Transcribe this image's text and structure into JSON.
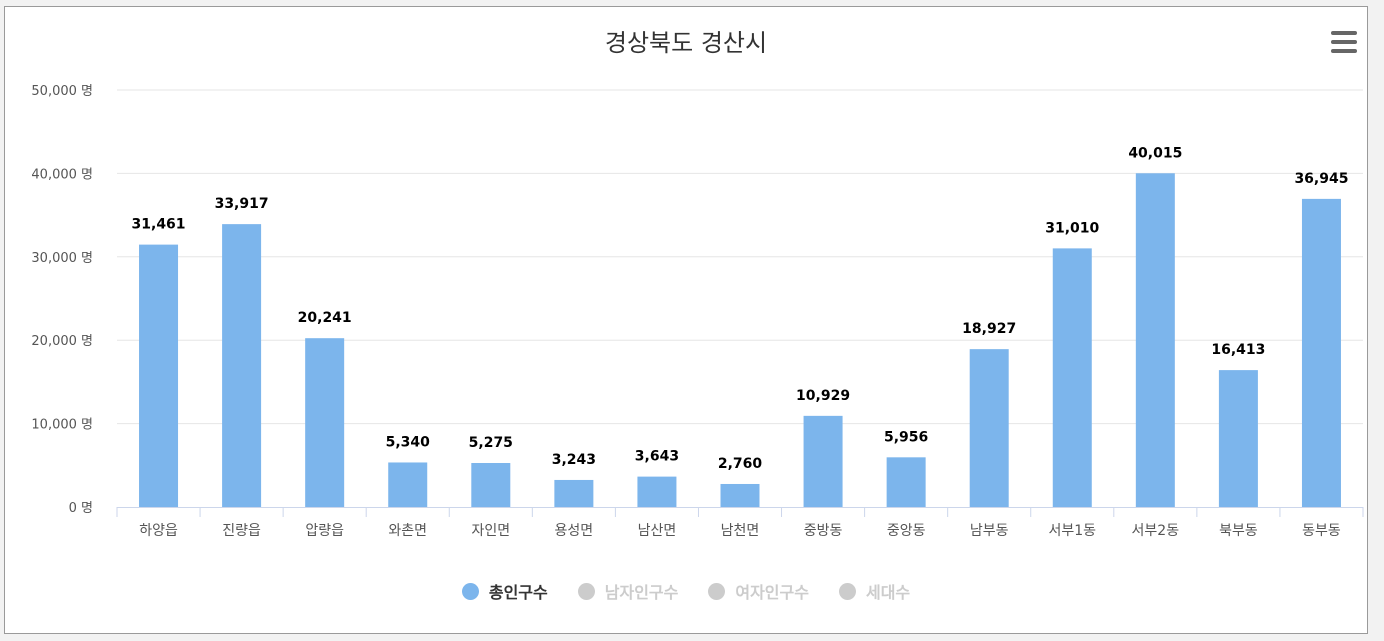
{
  "menu_icon": "hamburger-menu-icon",
  "chart_data": {
    "type": "bar",
    "title": "경상북도 경산시",
    "xlabel": "",
    "ylabel": "",
    "ylim": [
      0,
      50000
    ],
    "yticks": [
      0,
      10000,
      20000,
      30000,
      40000,
      50000
    ],
    "ytick_labels": [
      "0 명",
      "10,000 명",
      "20,000 명",
      "30,000 명",
      "40,000 명",
      "50,000 명"
    ],
    "grid": true,
    "legend_position": "bottom",
    "categories": [
      "하양읍",
      "진량읍",
      "압량읍",
      "와촌면",
      "자인면",
      "용성면",
      "남산면",
      "남천면",
      "중방동",
      "중앙동",
      "남부동",
      "서부1동",
      "서부2동",
      "북부동",
      "동부동"
    ],
    "series": [
      {
        "name": "총인구수",
        "color": "#7cb5ec",
        "active": true,
        "values": [
          31461,
          33917,
          20241,
          5340,
          5275,
          3243,
          3643,
          2760,
          10929,
          5956,
          18927,
          31010,
          40015,
          16413,
          36945
        ],
        "labels": [
          "31,461",
          "33,917",
          "20,241",
          "5,340",
          "5,275",
          "3,243",
          "3,643",
          "2,760",
          "10,929",
          "5,956",
          "18,927",
          "31,010",
          "40,015",
          "16,413",
          "36,945"
        ]
      },
      {
        "name": "남자인구수",
        "color": "#cccccc",
        "active": false
      },
      {
        "name": "여자인구수",
        "color": "#cccccc",
        "active": false
      },
      {
        "name": "세대수",
        "color": "#cccccc",
        "active": false
      }
    ]
  }
}
